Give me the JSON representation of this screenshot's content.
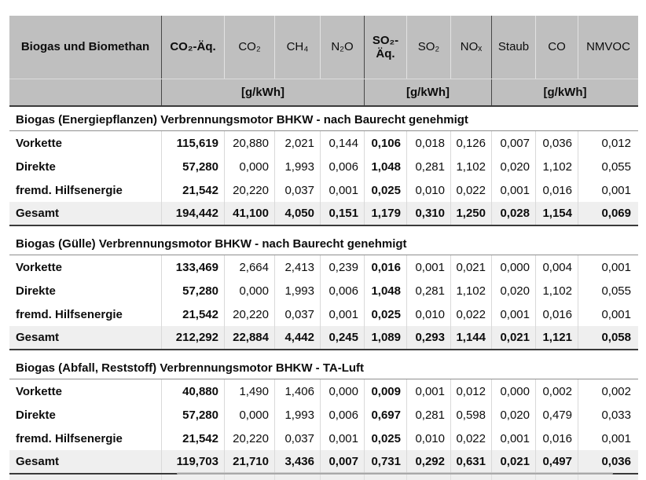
{
  "colors": {
    "header_bg": "#bfbfbf",
    "total_row_bg": "#efefef",
    "heavy_border": "#3a3a3a",
    "light_divider": "#d9d9d9",
    "text": "#0d0d0d"
  },
  "table": {
    "corner_label": "Biogas und Biomethan",
    "columns": [
      "CO₂-Äq.",
      "CO₂",
      "CH₄",
      "N₂O",
      "SO₂-Äq.",
      "SO₂",
      "NOₓ",
      "Staub",
      "CO",
      "NMVOC"
    ],
    "emphasized_value_columns": [
      0,
      4
    ],
    "unit_groups": [
      {
        "label": "[g/kWh]",
        "span": 4
      },
      {
        "label": "[g/kWh]",
        "span": 3
      },
      {
        "label": "[g/kWh]",
        "span": 3
      }
    ],
    "sections": [
      {
        "title": "Biogas (Energiepflanzen) Verbrennungsmotor BHKW - nach Baurecht genehmigt",
        "rows": [
          {
            "label": "Vorkette",
            "is_total": false,
            "values": [
              "115,619",
              "20,880",
              "2,021",
              "0,144",
              "0,106",
              "0,018",
              "0,126",
              "0,007",
              "0,036",
              "0,012"
            ]
          },
          {
            "label": "Direkte",
            "is_total": false,
            "values": [
              "57,280",
              "0,000",
              "1,993",
              "0,006",
              "1,048",
              "0,281",
              "1,102",
              "0,020",
              "1,102",
              "0,055"
            ]
          },
          {
            "label": "fremd. Hilfsenergie",
            "is_total": false,
            "values": [
              "21,542",
              "20,220",
              "0,037",
              "0,001",
              "0,025",
              "0,010",
              "0,022",
              "0,001",
              "0,016",
              "0,001"
            ]
          },
          {
            "label": "Gesamt",
            "is_total": true,
            "values": [
              "194,442",
              "41,100",
              "4,050",
              "0,151",
              "1,179",
              "0,310",
              "1,250",
              "0,028",
              "1,154",
              "0,069"
            ]
          }
        ]
      },
      {
        "title": "Biogas (Gülle) Verbrennungsmotor BHKW - nach Baurecht genehmigt",
        "rows": [
          {
            "label": "Vorkette",
            "is_total": false,
            "values": [
              "133,469",
              "2,664",
              "2,413",
              "0,239",
              "0,016",
              "0,001",
              "0,021",
              "0,000",
              "0,004",
              "0,001"
            ]
          },
          {
            "label": "Direkte",
            "is_total": false,
            "values": [
              "57,280",
              "0,000",
              "1,993",
              "0,006",
              "1,048",
              "0,281",
              "1,102",
              "0,020",
              "1,102",
              "0,055"
            ]
          },
          {
            "label": "fremd. Hilfsenergie",
            "is_total": false,
            "values": [
              "21,542",
              "20,220",
              "0,037",
              "0,001",
              "0,025",
              "0,010",
              "0,022",
              "0,001",
              "0,016",
              "0,001"
            ]
          },
          {
            "label": "Gesamt",
            "is_total": true,
            "values": [
              "212,292",
              "22,884",
              "4,442",
              "0,245",
              "1,089",
              "0,293",
              "1,144",
              "0,021",
              "1,121",
              "0,058"
            ]
          }
        ]
      },
      {
        "title": "Biogas (Abfall, Reststoff) Verbrennungsmotor BHKW - TA-Luft",
        "rows": [
          {
            "label": "Vorkette",
            "is_total": false,
            "values": [
              "40,880",
              "1,490",
              "1,406",
              "0,000",
              "0,009",
              "0,001",
              "0,012",
              "0,000",
              "0,002",
              "0,002"
            ]
          },
          {
            "label": "Direkte",
            "is_total": false,
            "values": [
              "57,280",
              "0,000",
              "1,993",
              "0,006",
              "0,697",
              "0,281",
              "0,598",
              "0,020",
              "0,479",
              "0,033"
            ]
          },
          {
            "label": "fremd. Hilfsenergie",
            "is_total": false,
            "values": [
              "21,542",
              "20,220",
              "0,037",
              "0,001",
              "0,025",
              "0,010",
              "0,022",
              "0,001",
              "0,016",
              "0,001"
            ]
          },
          {
            "label": "Gesamt",
            "is_total": true,
            "values": [
              "119,703",
              "21,710",
              "3,436",
              "0,007",
              "0,731",
              "0,292",
              "0,631",
              "0,021",
              "0,497",
              "0,036"
            ]
          }
        ]
      }
    ]
  }
}
